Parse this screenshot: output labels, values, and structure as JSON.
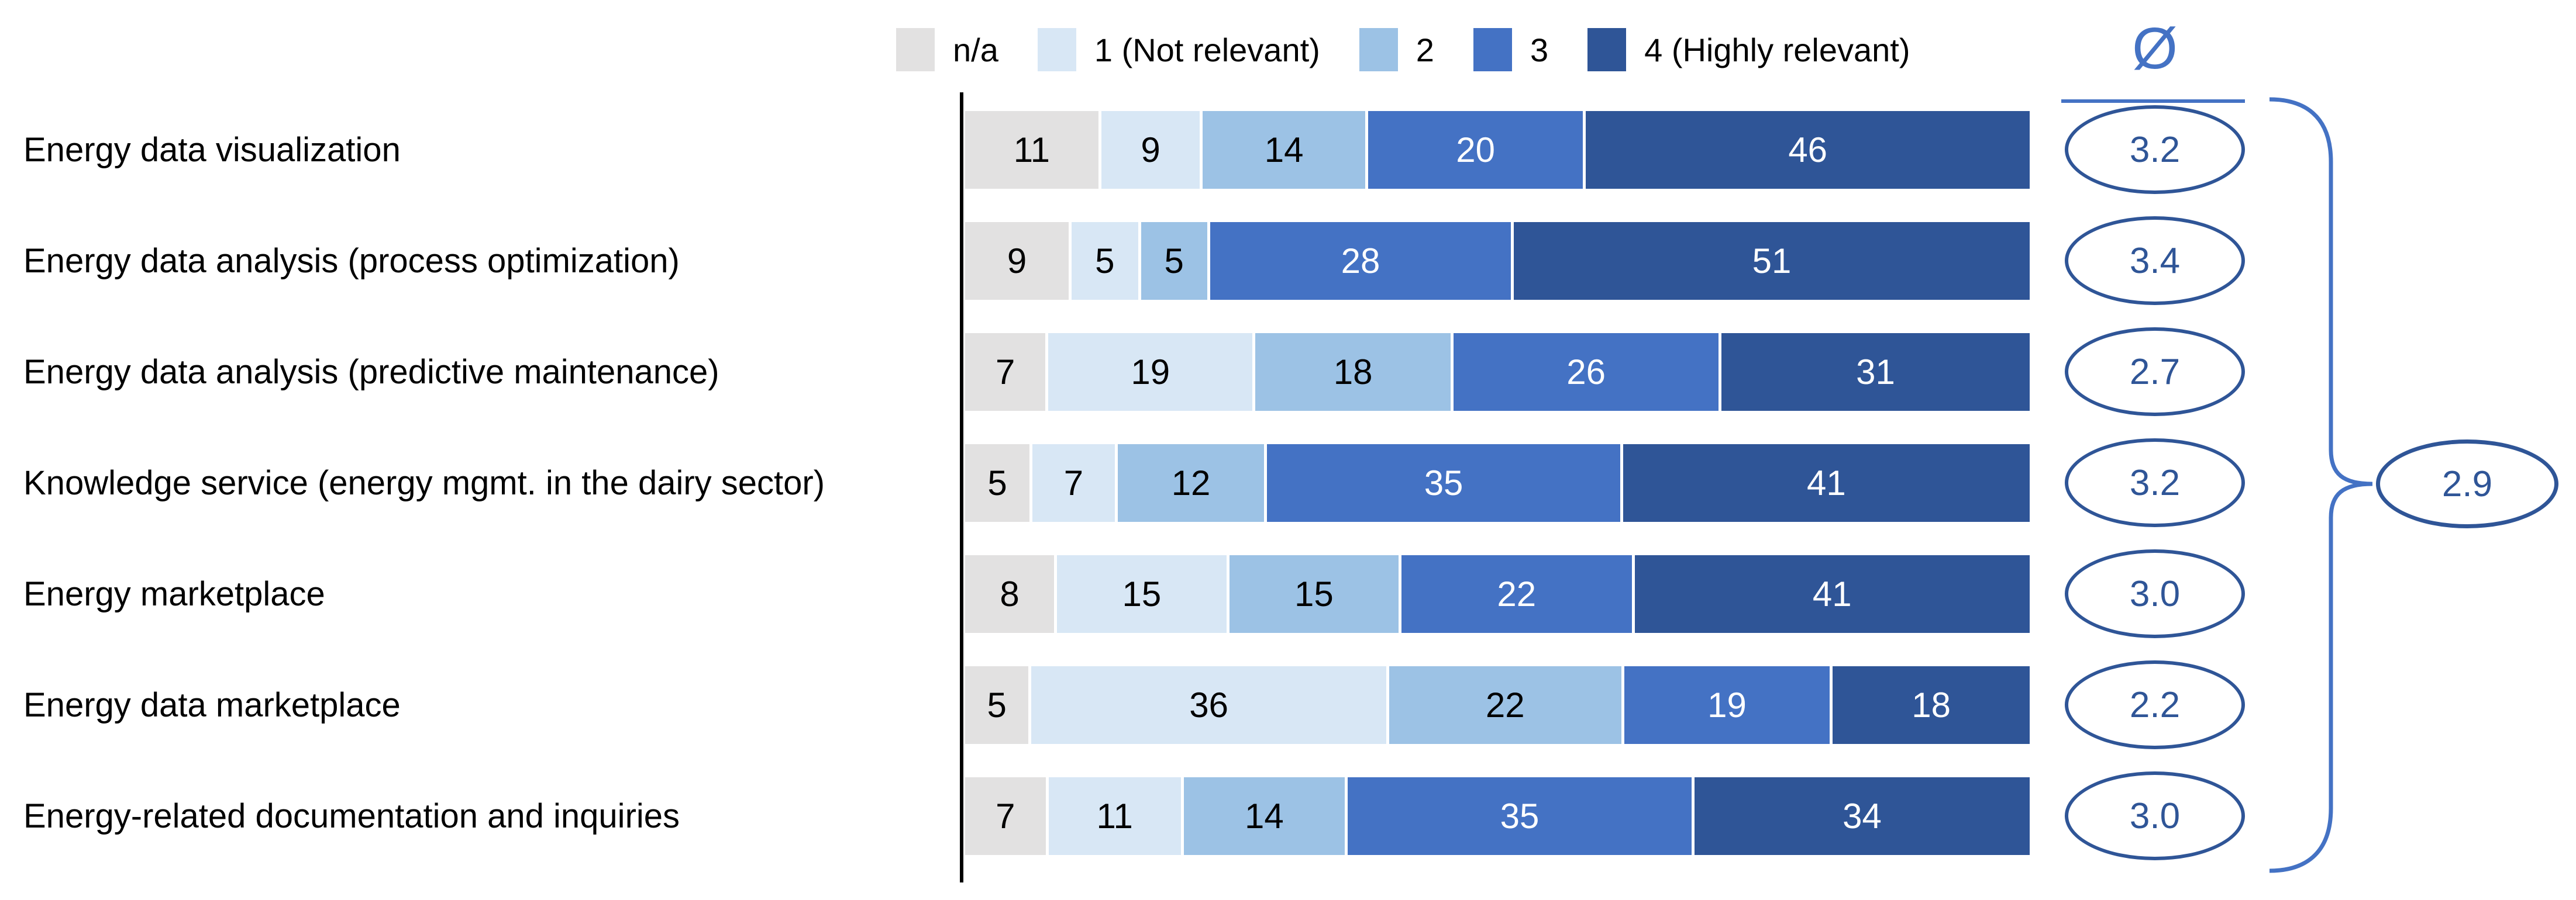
{
  "legend": {
    "items": [
      {
        "label": "n/a",
        "color": "#E2E1E1",
        "text_color": "#000000"
      },
      {
        "label": "1 (Not relevant)",
        "color": "#D8E7F5",
        "text_color": "#000000"
      },
      {
        "label": "2",
        "color": "#9CC2E5",
        "text_color": "#000000"
      },
      {
        "label": "3",
        "color": "#4472C4",
        "text_color": "#FFFFFF"
      },
      {
        "label": "4 (Highly relevant)",
        "color": "#2F5597",
        "text_color": "#FFFFFF"
      }
    ]
  },
  "average_header": {
    "symbol": "Ø"
  },
  "chart_data": {
    "type": "bar",
    "stacked": true,
    "orientation": "horizontal",
    "units": "percent of respondents",
    "legend_position": "top",
    "categories": [
      "Energy data visualization",
      "Energy data analysis (process optimization)",
      "Energy data analysis (predictive maintenance)",
      "Knowledge service (energy mgmt. in the dairy sector)",
      "Energy marketplace",
      "Energy data marketplace",
      "Energy-related documentation and inquiries"
    ],
    "series": [
      {
        "name": "n/a",
        "color": "#E2E1E1",
        "text_color": "#000000",
        "values": [
          11,
          9,
          7,
          5,
          8,
          5,
          7
        ]
      },
      {
        "name": "1 (Not relevant)",
        "color": "#D8E7F5",
        "text_color": "#000000",
        "values": [
          9,
          5,
          19,
          7,
          15,
          36,
          11
        ]
      },
      {
        "name": "2",
        "color": "#9CC2E5",
        "text_color": "#000000",
        "values": [
          14,
          5,
          18,
          12,
          15,
          22,
          14
        ]
      },
      {
        "name": "3",
        "color": "#4472C4",
        "text_color": "#FFFFFF",
        "values": [
          20,
          28,
          26,
          35,
          22,
          19,
          35
        ]
      },
      {
        "name": "4 (Highly relevant)",
        "color": "#2F5597",
        "text_color": "#FFFFFF",
        "values": [
          46,
          51,
          31,
          41,
          41,
          18,
          34
        ]
      }
    ],
    "averages": [
      "3.2",
      "3.4",
      "2.7",
      "3.2",
      "3.0",
      "2.2",
      "3.0"
    ],
    "overall_average": "2.9",
    "accent_colors": {
      "oval_stroke": "#2F5597",
      "bracket": "#4472C4",
      "axis": "#000000"
    }
  }
}
